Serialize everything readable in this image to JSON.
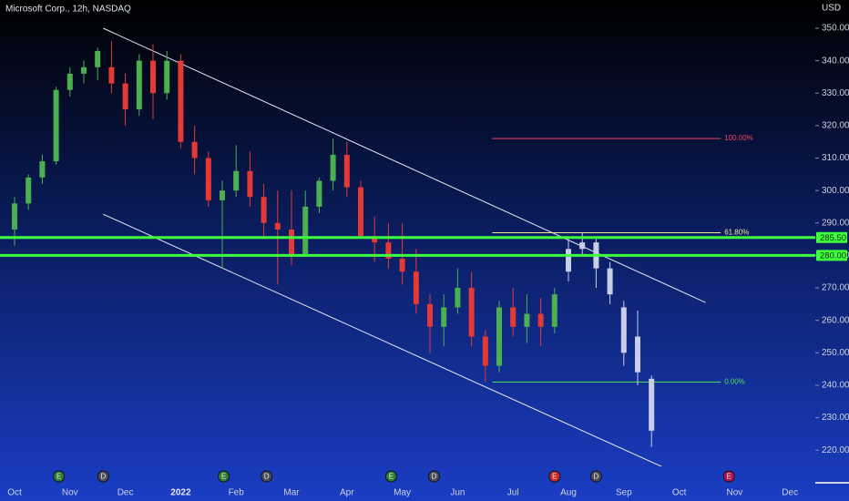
{
  "chart_data": {
    "type": "candlestick",
    "title": "Microsoft Corp., 12h, NASDAQ",
    "currency": "USD",
    "categories": [
      "Oct",
      null,
      null,
      null,
      "Nov",
      null,
      null,
      null,
      "Dec",
      null,
      null,
      null,
      "2022",
      null,
      null,
      null,
      "Feb",
      null,
      null,
      null,
      "Mar",
      null,
      null,
      null,
      "Apr",
      null,
      null,
      null,
      "May",
      null,
      null,
      null,
      "Jun",
      null,
      null,
      null,
      "Jul",
      null,
      null,
      null,
      "Aug",
      null,
      null,
      null,
      "Sep",
      null,
      null,
      null,
      "Oct",
      null,
      null,
      null,
      "Nov",
      null,
      null,
      null,
      "Dec"
    ],
    "open": [
      288,
      296,
      304,
      309,
      331,
      336,
      338,
      338,
      333,
      325,
      340,
      330,
      340,
      315,
      310,
      297,
      300,
      306,
      298,
      290,
      288,
      280,
      295,
      303,
      311,
      301,
      286,
      284,
      279,
      275,
      265,
      258,
      264,
      270,
      255,
      246,
      264,
      258,
      262,
      258,
      275,
      282,
      284,
      276,
      264,
      255,
      242,
      null,
      null,
      null,
      null,
      null,
      null,
      null,
      null,
      null,
      null
    ],
    "high": [
      298,
      305,
      311,
      332,
      338,
      340,
      344,
      346,
      336,
      342,
      345,
      343,
      342,
      320,
      312,
      303,
      314,
      312,
      302,
      300,
      300,
      300,
      304,
      316,
      315,
      303,
      292,
      290,
      290,
      282,
      268,
      268,
      276,
      275,
      257,
      266,
      270,
      268,
      267,
      270,
      285,
      287,
      286,
      278,
      266,
      263,
      243,
      null,
      null,
      null,
      null,
      null,
      null,
      null,
      null,
      null,
      null
    ],
    "low": [
      283,
      294,
      302,
      308,
      329,
      333,
      334,
      330,
      320,
      323,
      322,
      328,
      313,
      305,
      295,
      276,
      298,
      295,
      285,
      271,
      277,
      280,
      293,
      300,
      298,
      285,
      278,
      276,
      271,
      262,
      250,
      252,
      262,
      252,
      241,
      244,
      255,
      253,
      252,
      256,
      272,
      280,
      270,
      265,
      246,
      240,
      221,
      null,
      null,
      null,
      null,
      null,
      null,
      null,
      null,
      null,
      null
    ],
    "close": [
      296,
      304,
      309,
      331,
      336,
      338,
      343,
      333,
      325,
      340,
      330,
      340,
      315,
      310,
      297,
      300,
      306,
      298,
      290,
      288,
      280,
      295,
      303,
      311,
      301,
      286,
      284,
      279,
      275,
      265,
      258,
      264,
      270,
      255,
      246,
      264,
      258,
      262,
      258,
      268,
      282,
      284,
      276,
      268,
      250,
      244,
      226,
      null,
      null,
      null,
      null,
      null,
      null,
      null,
      null,
      null,
      null
    ],
    "up_color": "#4caf50",
    "down_color": "#e53935",
    "projection_from": 40,
    "projection_color": "#c9cee6",
    "ylim": [
      215,
      358.7
    ],
    "yticks": [
      {
        "value": 220,
        "label": "220.00"
      },
      {
        "value": 230,
        "label": "230.00"
      },
      {
        "value": 240,
        "label": "240.00"
      },
      {
        "value": 250,
        "label": "250.00"
      },
      {
        "value": 260,
        "label": "260.00"
      },
      {
        "value": 270,
        "label": "270.00"
      },
      {
        "value": 280,
        "label": "280.00"
      },
      {
        "value": 290,
        "label": "290.00"
      },
      {
        "value": 300,
        "label": "300.00"
      },
      {
        "value": 310,
        "label": "310.00"
      },
      {
        "value": 320,
        "label": "320.00"
      },
      {
        "value": 330,
        "label": "330.00"
      },
      {
        "value": 340,
        "label": "340.00"
      },
      {
        "value": 350,
        "label": "350.00"
      }
    ],
    "price_lines": [
      {
        "value": 285.5,
        "label": "285.50",
        "color": "#3dff3d"
      },
      {
        "value": 280,
        "label": "280.00",
        "color": "#3dff3d"
      }
    ],
    "fib_levels": {
      "from": 34.5,
      "to": 51,
      "levels": [
        {
          "value": 316,
          "label": "100.00%",
          "color": "#f0435a"
        },
        {
          "value": 287,
          "label": "61.80%",
          "color": "#f3e6a0"
        },
        {
          "value": 241,
          "label": "0.00%",
          "color": "#4be05a"
        }
      ]
    },
    "trendlines": [
      {
        "from": [
          6.4,
          350
        ],
        "to": [
          49.9,
          265.5
        ],
        "color": "#e8e8f0"
      },
      {
        "from": [
          6.4,
          292.7
        ],
        "to": [
          49.3,
          210
        ],
        "color": "#e8e8f0"
      }
    ],
    "events": [
      {
        "index": 3.2,
        "label": "E",
        "color": "#2e7d32"
      },
      {
        "index": 6.4,
        "label": "D",
        "color": "#4a4f5c"
      },
      {
        "index": 15.1,
        "label": "E",
        "color": "#2e7d32"
      },
      {
        "index": 18.2,
        "label": "D",
        "color": "#4a4f5c"
      },
      {
        "index": 27.2,
        "label": "E",
        "color": "#2e7d32"
      },
      {
        "index": 30.3,
        "label": "D",
        "color": "#4a4f5c"
      },
      {
        "index": 39,
        "label": "E",
        "color": "#c62828"
      },
      {
        "index": 42,
        "label": "D",
        "color": "#4a4f5c"
      },
      {
        "index": 51.6,
        "label": "E",
        "color": "#ad1457"
      }
    ]
  }
}
